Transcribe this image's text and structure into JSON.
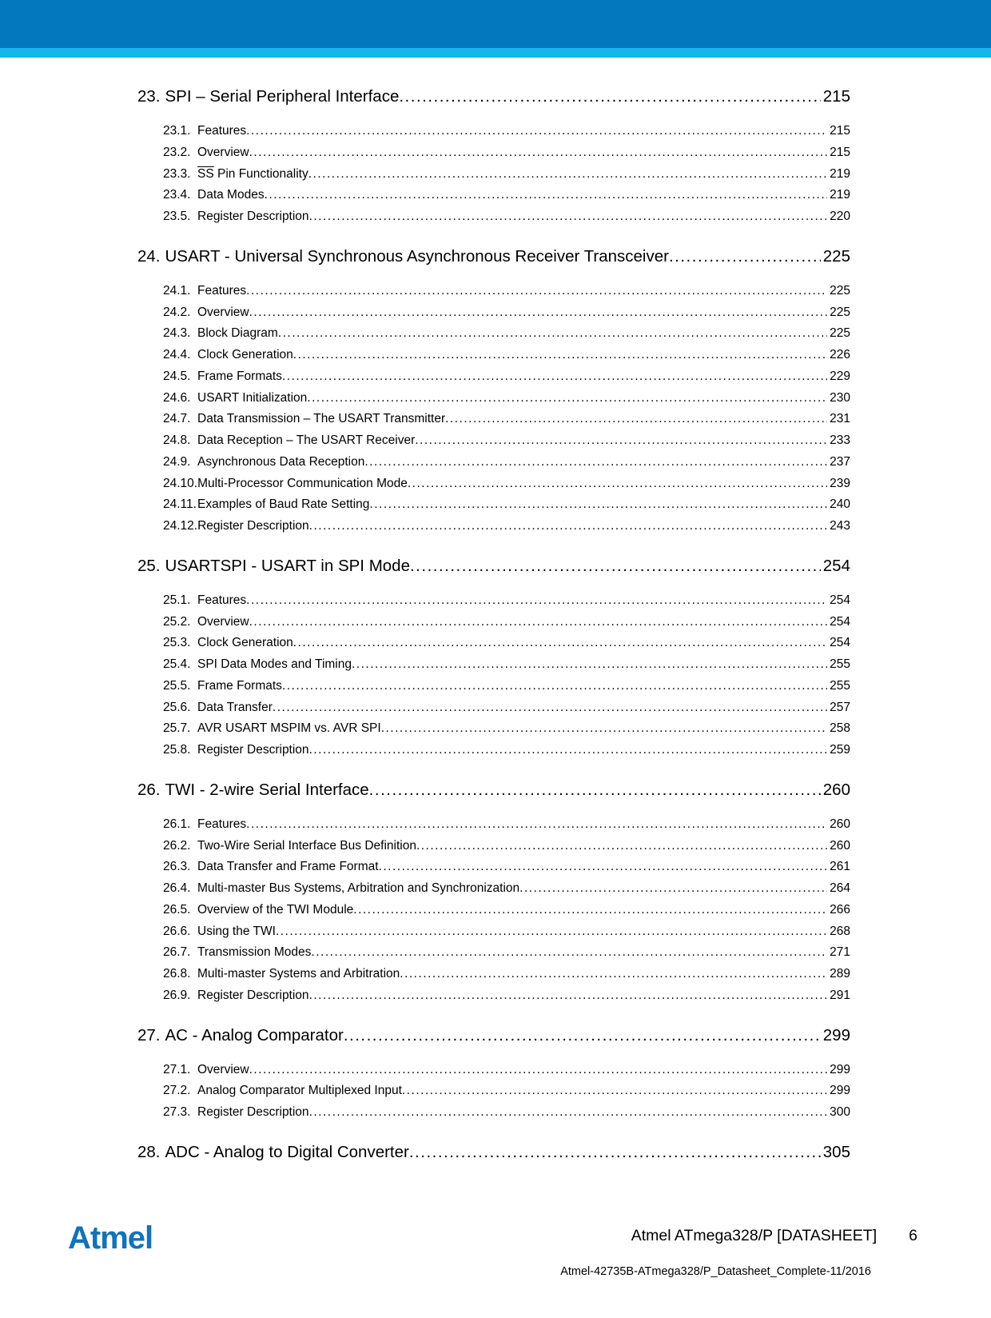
{
  "colors": {
    "header_bar": "#0378BE",
    "accent_bar": "#16B5EB",
    "logo_blue": "#1173B9",
    "text": "#000000"
  },
  "toc": {
    "sections": [
      {
        "num": "23.",
        "title": "SPI – Serial Peripheral Interface",
        "page": "215",
        "items": [
          {
            "num": "23.1.",
            "label": "Features",
            "page": "215"
          },
          {
            "num": "23.2.",
            "label": "Overview",
            "page": "215"
          },
          {
            "num": "23.3.",
            "label": "SS Pin Functionality",
            "overline_part": "SS",
            "label_after": " Pin Functionality",
            "page": "219"
          },
          {
            "num": "23.4.",
            "label": "Data Modes",
            "page": "219"
          },
          {
            "num": "23.5.",
            "label": "Register Description",
            "page": "220"
          }
        ]
      },
      {
        "num": "24.",
        "title": "USART - Universal Synchronous Asynchronous Receiver Transceiver",
        "page": "225",
        "items": [
          {
            "num": "24.1.",
            "label": "Features",
            "page": "225"
          },
          {
            "num": "24.2.",
            "label": "Overview",
            "page": "225"
          },
          {
            "num": "24.3.",
            "label": "Block Diagram",
            "page": "225"
          },
          {
            "num": "24.4.",
            "label": "Clock Generation",
            "page": "226"
          },
          {
            "num": "24.5.",
            "label": "Frame Formats",
            "page": "229"
          },
          {
            "num": "24.6.",
            "label": "USART Initialization",
            "page": "230"
          },
          {
            "num": "24.7.",
            "label": "Data Transmission – The USART Transmitter",
            "page": "231"
          },
          {
            "num": "24.8.",
            "label": "Data Reception – The USART Receiver",
            "page": "233"
          },
          {
            "num": "24.9.",
            "label": "Asynchronous Data Reception",
            "page": "237"
          },
          {
            "num": "24.10.",
            "label": "Multi-Processor Communication Mode",
            "page": "239"
          },
          {
            "num": "24.11.",
            "label": "Examples of Baud Rate Setting",
            "page": "240"
          },
          {
            "num": "24.12.",
            "label": "Register Description",
            "page": "243"
          }
        ]
      },
      {
        "num": "25.",
        "title": "USARTSPI - USART in SPI Mode",
        "page": "254",
        "items": [
          {
            "num": "25.1.",
            "label": "Features",
            "page": "254"
          },
          {
            "num": "25.2.",
            "label": "Overview",
            "page": "254"
          },
          {
            "num": "25.3.",
            "label": "Clock Generation",
            "page": "254"
          },
          {
            "num": "25.4.",
            "label": "SPI Data Modes and Timing",
            "page": "255"
          },
          {
            "num": "25.5.",
            "label": "Frame Formats",
            "page": "255"
          },
          {
            "num": "25.6.",
            "label": "Data Transfer",
            "page": "257"
          },
          {
            "num": "25.7.",
            "label": "AVR USART MSPIM vs. AVR SPI",
            "page": "258"
          },
          {
            "num": "25.8.",
            "label": "Register Description",
            "page": "259"
          }
        ]
      },
      {
        "num": "26.",
        "title": "TWI - 2-wire Serial Interface",
        "page": "260",
        "items": [
          {
            "num": "26.1.",
            "label": "Features",
            "page": "260"
          },
          {
            "num": "26.2.",
            "label": "Two-Wire Serial Interface Bus Definition",
            "page": "260"
          },
          {
            "num": "26.3.",
            "label": "Data Transfer and Frame Format",
            "page": "261"
          },
          {
            "num": "26.4.",
            "label": "Multi-master Bus Systems, Arbitration and Synchronization",
            "page": "264"
          },
          {
            "num": "26.5.",
            "label": "Overview of the TWI Module",
            "page": "266"
          },
          {
            "num": "26.6.",
            "label": "Using the TWI",
            "page": "268"
          },
          {
            "num": "26.7.",
            "label": "Transmission Modes",
            "page": "271"
          },
          {
            "num": "26.8.",
            "label": "Multi-master Systems and Arbitration",
            "page": "289"
          },
          {
            "num": "26.9.",
            "label": "Register Description",
            "page": "291"
          }
        ]
      },
      {
        "num": "27.",
        "title": "AC - Analog Comparator",
        "page": "299",
        "items": [
          {
            "num": "27.1.",
            "label": "Overview",
            "page": "299"
          },
          {
            "num": "27.2.",
            "label": "Analog Comparator Multiplexed Input",
            "page": "299"
          },
          {
            "num": "27.3.",
            "label": "Register Description",
            "page": "300"
          }
        ]
      },
      {
        "num": "28.",
        "title": "ADC - Analog to Digital Converter",
        "page": "305",
        "items": []
      }
    ]
  },
  "footer": {
    "logo_text": "Atmel",
    "doc_title": "Atmel ATmega328/P [DATASHEET]",
    "page_number": "6",
    "doc_id": "Atmel-42735B-ATmega328/P_Datasheet_Complete-11/2016"
  }
}
